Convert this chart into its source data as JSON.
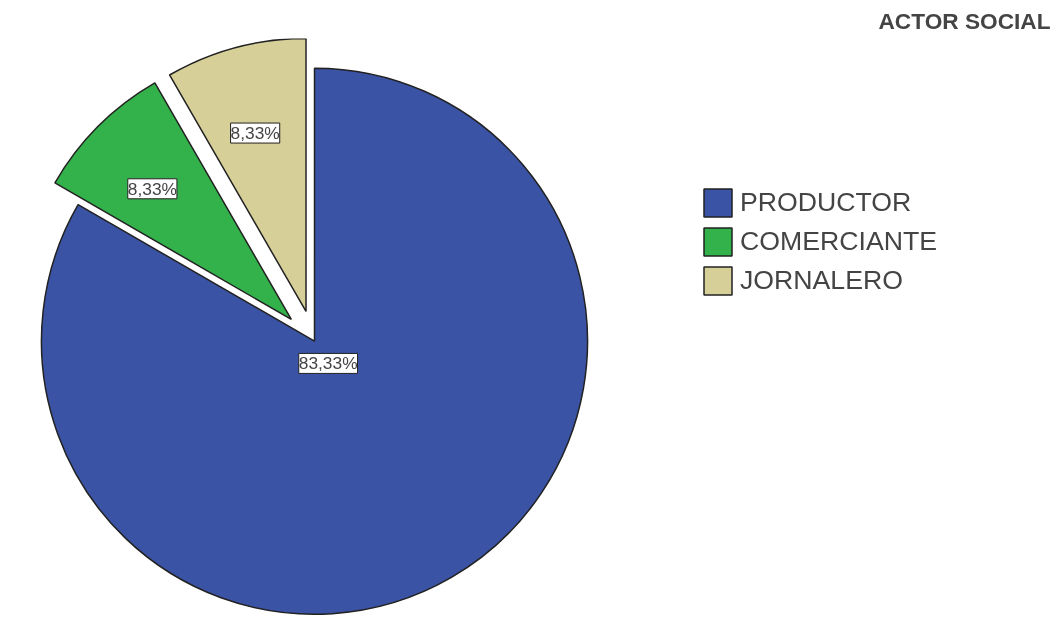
{
  "chart_data": {
    "type": "pie",
    "title": "ACTOR SOCIAL",
    "categories": [
      "PRODUCTOR",
      "COMERCIANTE",
      "JORNALERO"
    ],
    "values": [
      83.33,
      8.33,
      8.33
    ],
    "colors": [
      "#3a53a4",
      "#33b24b",
      "#d6cf98"
    ],
    "value_labels": [
      "83,33%",
      "8,33%",
      "8,33%"
    ],
    "legend": "right"
  }
}
